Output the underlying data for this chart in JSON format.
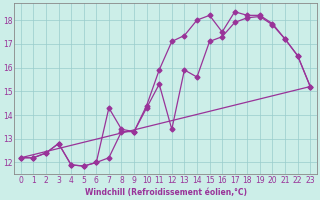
{
  "xlabel": "Windchill (Refroidissement éolien,°C)",
  "xlim": [
    -0.5,
    23.5
  ],
  "ylim": [
    11.5,
    18.7
  ],
  "yticks": [
    12,
    13,
    14,
    15,
    16,
    17,
    18
  ],
  "xticks": [
    0,
    1,
    2,
    3,
    4,
    5,
    6,
    7,
    8,
    9,
    10,
    11,
    12,
    13,
    14,
    15,
    16,
    17,
    18,
    19,
    20,
    21,
    22,
    23
  ],
  "bg_color": "#cceee8",
  "line_color": "#993399",
  "grid_color": "#99cccc",
  "line1_x": [
    0,
    1,
    2,
    3,
    4,
    5,
    6,
    7,
    8,
    9,
    10,
    11,
    12,
    13,
    14,
    15,
    16,
    17,
    18,
    19,
    20,
    21,
    22,
    23
  ],
  "line1_y": [
    12.2,
    12.2,
    12.4,
    12.8,
    11.9,
    11.85,
    12.0,
    12.2,
    13.3,
    13.3,
    14.3,
    15.3,
    13.4,
    15.9,
    15.6,
    17.1,
    17.3,
    17.9,
    18.1,
    18.15,
    17.8,
    17.2,
    16.5,
    15.2
  ],
  "line2_x": [
    0,
    1,
    2,
    3,
    4,
    5,
    6,
    7,
    8,
    9,
    10,
    11,
    12,
    13,
    14,
    15,
    16,
    17,
    18,
    19,
    20,
    21,
    22,
    23
  ],
  "line2_y": [
    12.2,
    12.2,
    12.4,
    12.8,
    11.9,
    11.85,
    12.0,
    14.3,
    13.4,
    13.3,
    14.4,
    15.9,
    17.1,
    17.35,
    18.0,
    18.2,
    17.5,
    18.35,
    18.2,
    18.2,
    17.85,
    17.2,
    16.5,
    15.2
  ],
  "line3_x": [
    0,
    23
  ],
  "line3_y": [
    12.2,
    15.2
  ]
}
